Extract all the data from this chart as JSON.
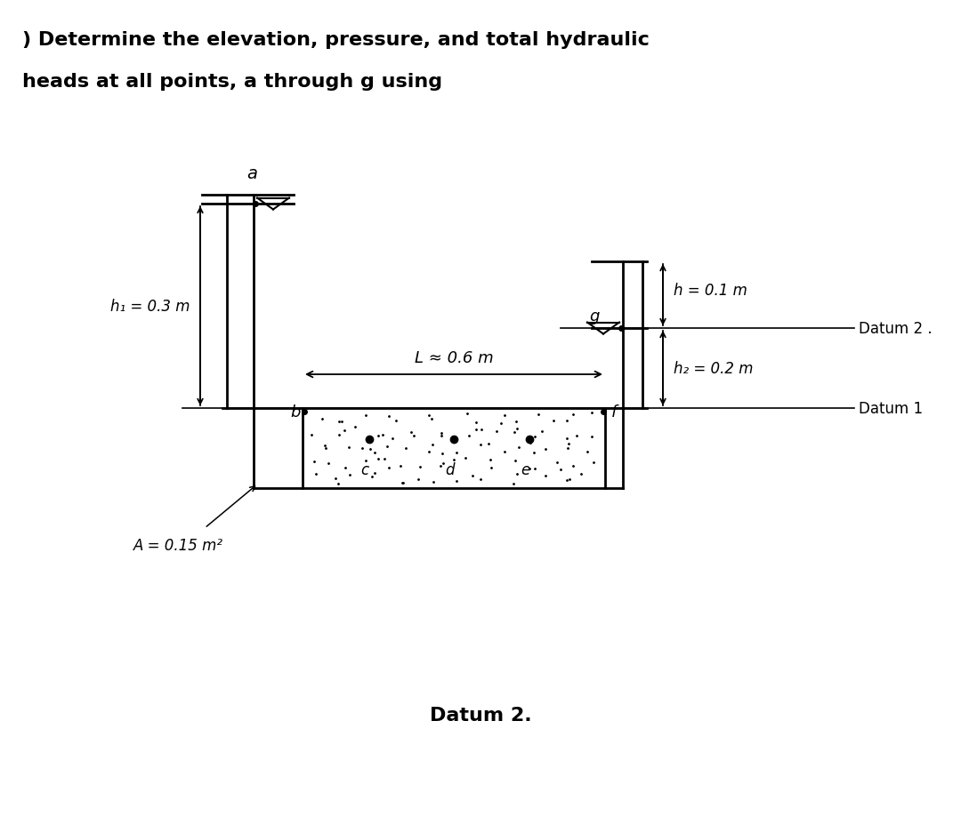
{
  "title_line1": ") Determine the elevation, pressure, and total hydraulic",
  "title_line2": "heads at all points, a through g using",
  "h1_label": "h₁ = 0.3 m",
  "h2_label": "h₂ = 0.2 m",
  "h_label": "h = 0.1 m",
  "L_label": "L ≈ 0.6 m",
  "A_label": "A = 0.15 m²",
  "datum1_label": "Datum 1",
  "datum2_label": "Datum 2 .",
  "datum2_bottom": "Datum 2.",
  "point_a": "a",
  "point_b": "b",
  "point_c": "c",
  "point_d": "d",
  "point_e": "e",
  "point_f": "f",
  "point_g": "g"
}
